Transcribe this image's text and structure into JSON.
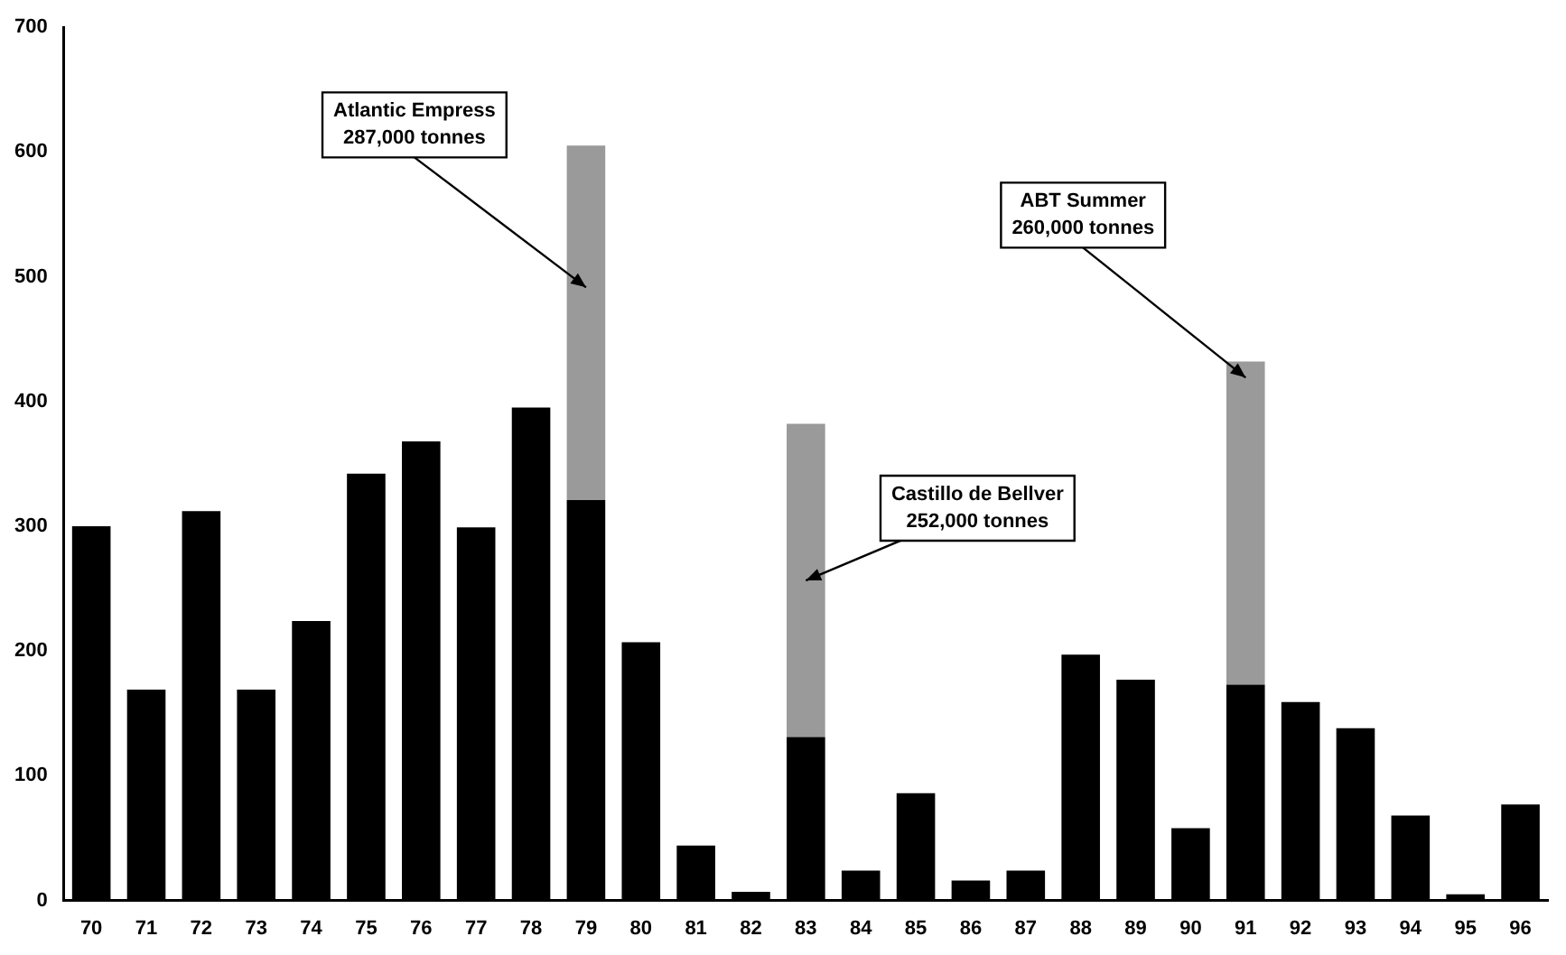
{
  "chart_data": {
    "type": "bar",
    "stacked": true,
    "categories": [
      "70",
      "71",
      "72",
      "73",
      "74",
      "75",
      "76",
      "77",
      "78",
      "79",
      "80",
      "81",
      "82",
      "83",
      "84",
      "85",
      "86",
      "87",
      "88",
      "89",
      "90",
      "91",
      "92",
      "93",
      "94",
      "95",
      "96"
    ],
    "series": [
      {
        "color": "#000000",
        "values": [
          300,
          169,
          312,
          169,
          224,
          342,
          368,
          299,
          395,
          321,
          207,
          44,
          7,
          131,
          24,
          86,
          16,
          24,
          197,
          177,
          58,
          173,
          159,
          138,
          68,
          5,
          77
        ]
      },
      {
        "color": "#9a9a9a",
        "values": [
          null,
          null,
          null,
          null,
          null,
          null,
          null,
          null,
          null,
          284,
          null,
          null,
          null,
          251,
          null,
          null,
          null,
          null,
          null,
          null,
          null,
          259,
          null,
          null,
          null,
          null,
          null
        ]
      }
    ],
    "ylim": [
      0,
      700
    ],
    "yticks": [
      0,
      100,
      200,
      300,
      400,
      500,
      600,
      700
    ],
    "grid": false,
    "legend": false,
    "annotations": [
      "Atlantic Empress\n287,000 tonnes",
      "Castillo de Bellver\n252,000 tonnes",
      "ABT Summer\n260,000 tonnes"
    ]
  }
}
